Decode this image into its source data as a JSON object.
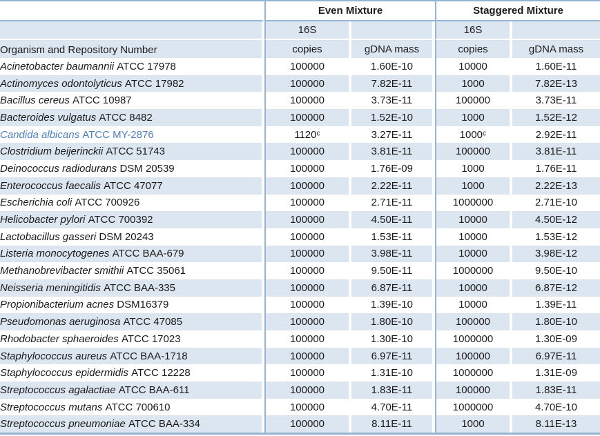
{
  "table": {
    "group_headers": {
      "even": "Even Mixture",
      "staggered": "Staggered Mixture"
    },
    "subheader": {
      "organism": "Organism and Repository Number",
      "s16": "16S",
      "copies": "copies",
      "gdna": "gDNA mass"
    },
    "colors": {
      "band": "#dce6f1",
      "border": "#95b3d7",
      "highlight_text": "#4f81bd",
      "text": "#1a1a1a"
    },
    "rows": [
      {
        "italic": "Acinetobacter baumannii",
        "roman": "ATCC 17978",
        "even_copies": "100000",
        "even_gdna": "1.60E-10",
        "stag_copies": "10000",
        "stag_gdna": "1.60E-11"
      },
      {
        "italic": "Actinomyces odontolyticus",
        "roman": "ATCC 17982",
        "even_copies": "100000",
        "even_gdna": "7.82E-11",
        "stag_copies": "1000",
        "stag_gdna": "7.82E-13"
      },
      {
        "italic": "Bacillus cereus",
        "roman": "ATCC 10987",
        "even_copies": "100000",
        "even_gdna": "3.73E-11",
        "stag_copies": "100000",
        "stag_gdna": "3.73E-11"
      },
      {
        "italic": "Bacteroides vulgatus",
        "roman": "ATCC 8482",
        "even_copies": "100000",
        "even_gdna": "1.52E-10",
        "stag_copies": "1000",
        "stag_gdna": "1.52E-12"
      },
      {
        "italic": "Candida albicans",
        "roman": "ATCC MY-2876",
        "even_copies": "1120ᶜ",
        "even_gdna": "3.27E-11",
        "stag_copies": "1000ᶜ",
        "stag_gdna": "2.92E-11",
        "highlight": true
      },
      {
        "italic": "Clostridium beijerinckii",
        "roman": "ATCC 51743",
        "even_copies": "100000",
        "even_gdna": "3.81E-11",
        "stag_copies": "100000",
        "stag_gdna": "3.81E-11"
      },
      {
        "italic": "Deinococcus radiodurans",
        "roman": "DSM 20539",
        "even_copies": "100000",
        "even_gdna": "1.76E-09",
        "stag_copies": "1000",
        "stag_gdna": "1.76E-11"
      },
      {
        "italic": "Enterococcus faecalis",
        "roman": "ATCC 47077",
        "even_copies": "100000",
        "even_gdna": "2.22E-11",
        "stag_copies": "1000",
        "stag_gdna": "2.22E-13"
      },
      {
        "italic": "Escherichia coli",
        "roman": "ATCC 700926",
        "even_copies": "100000",
        "even_gdna": "2.71E-11",
        "stag_copies": "1000000",
        "stag_gdna": "2.71E-10"
      },
      {
        "italic": "Helicobacter pylori",
        "roman": "ATCC 700392",
        "even_copies": "100000",
        "even_gdna": "4.50E-11",
        "stag_copies": "10000",
        "stag_gdna": "4.50E-12"
      },
      {
        "italic": "Lactobacillus gasseri",
        "roman": "DSM 20243",
        "even_copies": "100000",
        "even_gdna": "1.53E-11",
        "stag_copies": "10000",
        "stag_gdna": "1.53E-12"
      },
      {
        "italic": "Listeria monocytogenes",
        "roman": "ATCC BAA-679",
        "even_copies": "100000",
        "even_gdna": "3.98E-11",
        "stag_copies": "10000",
        "stag_gdna": "3.98E-12"
      },
      {
        "italic": "Methanobrevibacter smithii",
        "roman": "ATCC 35061",
        "even_copies": "100000",
        "even_gdna": "9.50E-11",
        "stag_copies": "1000000",
        "stag_gdna": "9.50E-10"
      },
      {
        "italic": "Neisseria meningitidis",
        "roman": "ATCC BAA-335",
        "even_copies": "100000",
        "even_gdna": "6.87E-11",
        "stag_copies": "10000",
        "stag_gdna": "6.87E-12"
      },
      {
        "italic": "Propionibacterium acnes",
        "roman": "DSM16379",
        "even_copies": "100000",
        "even_gdna": "1.39E-10",
        "stag_copies": "10000",
        "stag_gdna": "1.39E-11"
      },
      {
        "italic": "Pseudomonas aeruginosa",
        "roman": "ATCC 47085",
        "even_copies": "100000",
        "even_gdna": "1.80E-10",
        "stag_copies": "100000",
        "stag_gdna": "1.80E-10"
      },
      {
        "italic": "Rhodobacter sphaeroides",
        "roman": "ATCC 17023",
        "even_copies": "100000",
        "even_gdna": "1.30E-10",
        "stag_copies": "1000000",
        "stag_gdna": "1.30E-09"
      },
      {
        "italic": "Staphylococcus aureus",
        "roman": "ATCC BAA-1718",
        "even_copies": "100000",
        "even_gdna": "6.97E-11",
        "stag_copies": "100000",
        "stag_gdna": "6.97E-11"
      },
      {
        "italic": "Staphylococcus epidermidis",
        "roman": "ATCC 12228",
        "even_copies": "100000",
        "even_gdna": "1.31E-10",
        "stag_copies": "1000000",
        "stag_gdna": "1.31E-09"
      },
      {
        "italic": "Streptococcus agalactiae",
        "roman": "ATCC BAA-611",
        "even_copies": "100000",
        "even_gdna": "1.83E-11",
        "stag_copies": "100000",
        "stag_gdna": "1.83E-11"
      },
      {
        "italic": "Streptococcus mutans",
        "roman": "ATCC 700610",
        "even_copies": "100000",
        "even_gdna": "4.70E-11",
        "stag_copies": "1000000",
        "stag_gdna": "4.70E-10"
      },
      {
        "italic": "Streptococcus pneumoniae",
        "roman": "ATCC BAA-334",
        "even_copies": "100000",
        "even_gdna": "8.11E-11",
        "stag_copies": "1000",
        "stag_gdna": "8.11E-13"
      }
    ]
  }
}
